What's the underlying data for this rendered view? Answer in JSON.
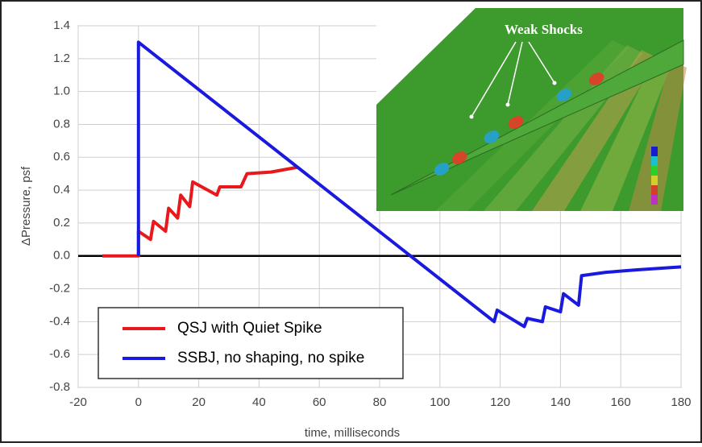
{
  "chart_data": {
    "type": "line",
    "xlabel": "time, milliseconds",
    "ylabel": "ΔPressure, psf",
    "annotations": [
      "Weak Shocks"
    ],
    "xlim": [
      -20,
      180
    ],
    "xticks": [
      -20,
      0,
      20,
      40,
      60,
      80,
      100,
      120,
      140,
      160,
      180
    ],
    "ylim": [
      -0.8,
      1.4
    ],
    "yticks": [
      -0.8,
      -0.6,
      -0.4,
      -0.2,
      {
        "value": 0,
        "label": "0.0"
      },
      0.2,
      0.4,
      0.6,
      0.8,
      {
        "value": 1,
        "label": "1.0"
      },
      1.2,
      1.4
    ],
    "grid": true,
    "legend": "lower left",
    "series": [
      {
        "name": "QSJ with Quiet Spike",
        "color": "#e8191c",
        "x": [
          -12,
          0,
          0,
          4,
          5,
          9,
          10,
          13,
          14,
          17,
          18,
          26,
          27,
          34,
          36,
          44,
          53
        ],
        "values": [
          0,
          0,
          0.15,
          0.1,
          0.21,
          0.15,
          0.29,
          0.23,
          0.37,
          0.3,
          0.45,
          0.37,
          0.42,
          0.42,
          0.5,
          0.51,
          0.54
        ]
      },
      {
        "name": "SSBJ, no shaping, no spike",
        "color": "#1a1adf",
        "x": [
          0,
          0,
          118,
          119,
          128,
          129,
          134,
          135,
          140,
          141,
          146,
          147,
          155,
          165,
          180
        ],
        "values": [
          0,
          1.3,
          -0.4,
          -0.33,
          -0.43,
          -0.38,
          -0.4,
          -0.31,
          -0.34,
          -0.23,
          -0.3,
          -0.12,
          -0.1,
          -0.085,
          -0.067
        ]
      }
    ]
  }
}
